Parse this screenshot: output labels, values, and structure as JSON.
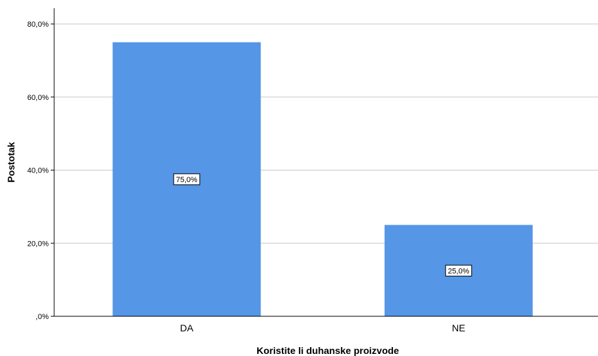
{
  "chart_data": {
    "type": "bar",
    "categories": [
      "DA",
      "NE"
    ],
    "values": [
      75.0,
      25.0
    ],
    "data_labels": [
      "75,0%",
      "25,0%"
    ],
    "xlabel": "Koristite li duhanske proizvode",
    "ylabel": "Postotak",
    "ylim": [
      0,
      80
    ],
    "yticks": [
      0,
      20,
      40,
      60,
      80
    ],
    "ytick_labels": [
      ",0%",
      "20,0%",
      "40,0%",
      "60,0%",
      "80,0%"
    ],
    "grid": true,
    "bar_color": "#5596e6",
    "legend": "none"
  }
}
